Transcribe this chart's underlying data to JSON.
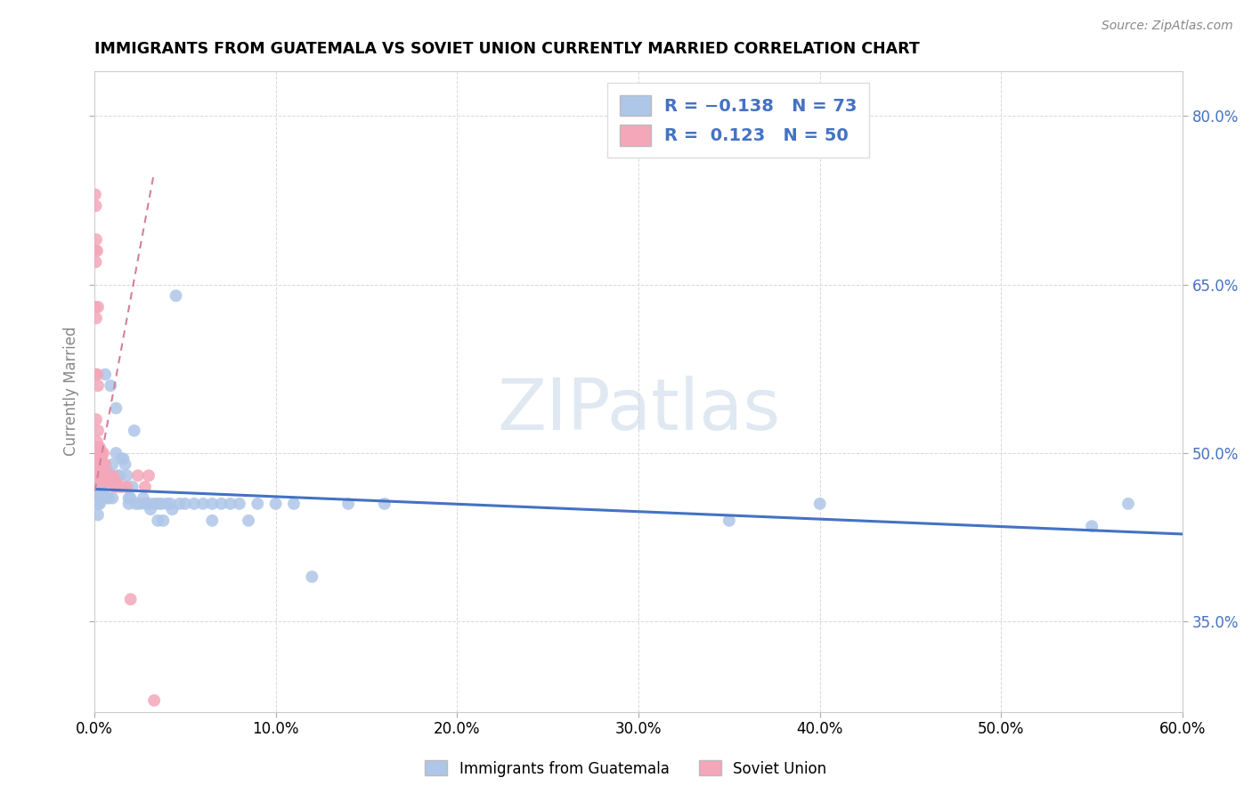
{
  "title": "IMMIGRANTS FROM GUATEMALA VS SOVIET UNION CURRENTLY MARRIED CORRELATION CHART",
  "source": "Source: ZipAtlas.com",
  "ylabel_label": "Currently Married",
  "legend_label1": "Immigrants from Guatemala",
  "legend_label2": "Soviet Union",
  "guatemala_color": "#aec6e8",
  "soviet_color": "#f4a7b9",
  "guatemala_line_color": "#4472c4",
  "soviet_line_color": "#d4809a",
  "background_color": "#ffffff",
  "grid_color": "#d8d8d8",
  "watermark": "ZIPatlas",
  "xlim": [
    0.0,
    0.6
  ],
  "ylim": [
    0.27,
    0.84
  ],
  "xticks": [
    0.0,
    0.1,
    0.2,
    0.3,
    0.4,
    0.5,
    0.6
  ],
  "yticks": [
    0.35,
    0.5,
    0.65,
    0.8
  ],
  "guatemala_scatter_x": [
    0.001,
    0.001,
    0.002,
    0.002,
    0.002,
    0.002,
    0.003,
    0.003,
    0.003,
    0.003,
    0.004,
    0.004,
    0.005,
    0.005,
    0.005,
    0.006,
    0.007,
    0.007,
    0.008,
    0.008,
    0.009,
    0.009,
    0.01,
    0.01,
    0.012,
    0.012,
    0.013,
    0.014,
    0.015,
    0.016,
    0.017,
    0.018,
    0.018,
    0.019,
    0.019,
    0.02,
    0.021,
    0.022,
    0.023,
    0.025,
    0.027,
    0.028,
    0.03,
    0.031,
    0.033,
    0.035,
    0.035,
    0.037,
    0.038,
    0.04,
    0.042,
    0.043,
    0.045,
    0.047,
    0.05,
    0.055,
    0.06,
    0.065,
    0.065,
    0.07,
    0.075,
    0.08,
    0.085,
    0.09,
    0.1,
    0.11,
    0.12,
    0.14,
    0.16,
    0.35,
    0.4,
    0.55,
    0.57
  ],
  "guatemala_scatter_y": [
    0.47,
    0.46,
    0.47,
    0.46,
    0.455,
    0.445,
    0.48,
    0.475,
    0.46,
    0.455,
    0.49,
    0.47,
    0.48,
    0.465,
    0.46,
    0.57,
    0.485,
    0.46,
    0.48,
    0.46,
    0.56,
    0.48,
    0.49,
    0.46,
    0.54,
    0.5,
    0.48,
    0.48,
    0.495,
    0.495,
    0.49,
    0.48,
    0.47,
    0.455,
    0.46,
    0.46,
    0.47,
    0.52,
    0.455,
    0.455,
    0.46,
    0.455,
    0.455,
    0.45,
    0.455,
    0.455,
    0.44,
    0.455,
    0.44,
    0.455,
    0.455,
    0.45,
    0.64,
    0.455,
    0.455,
    0.455,
    0.455,
    0.455,
    0.44,
    0.455,
    0.455,
    0.455,
    0.44,
    0.455,
    0.455,
    0.455,
    0.39,
    0.455,
    0.455,
    0.44,
    0.455,
    0.435,
    0.455
  ],
  "soviet_scatter_x": [
    0.0005,
    0.0005,
    0.0005,
    0.0008,
    0.0008,
    0.001,
    0.001,
    0.001,
    0.001,
    0.001,
    0.0015,
    0.0015,
    0.0015,
    0.002,
    0.002,
    0.002,
    0.002,
    0.002,
    0.0025,
    0.003,
    0.003,
    0.003,
    0.003,
    0.003,
    0.003,
    0.004,
    0.004,
    0.004,
    0.004,
    0.005,
    0.005,
    0.005,
    0.005,
    0.006,
    0.006,
    0.007,
    0.007,
    0.008,
    0.009,
    0.01,
    0.011,
    0.012,
    0.013,
    0.015,
    0.018,
    0.02,
    0.024,
    0.028,
    0.03,
    0.033
  ],
  "soviet_scatter_y": [
    0.73,
    0.68,
    0.63,
    0.72,
    0.67,
    0.69,
    0.62,
    0.57,
    0.53,
    0.5,
    0.68,
    0.57,
    0.51,
    0.63,
    0.56,
    0.52,
    0.505,
    0.49,
    0.5,
    0.505,
    0.5,
    0.495,
    0.485,
    0.48,
    0.475,
    0.5,
    0.495,
    0.485,
    0.48,
    0.48,
    0.475,
    0.5,
    0.49,
    0.49,
    0.475,
    0.475,
    0.48,
    0.48,
    0.475,
    0.48,
    0.47,
    0.475,
    0.47,
    0.47,
    0.47,
    0.37,
    0.48,
    0.47,
    0.48,
    0.28
  ],
  "guatemala_trend_x": [
    0.0,
    0.6
  ],
  "guatemala_trend_y": [
    0.468,
    0.428
  ],
  "soviet_trend_x": [
    -0.001,
    0.033
  ],
  "soviet_trend_y": [
    0.455,
    0.75
  ]
}
